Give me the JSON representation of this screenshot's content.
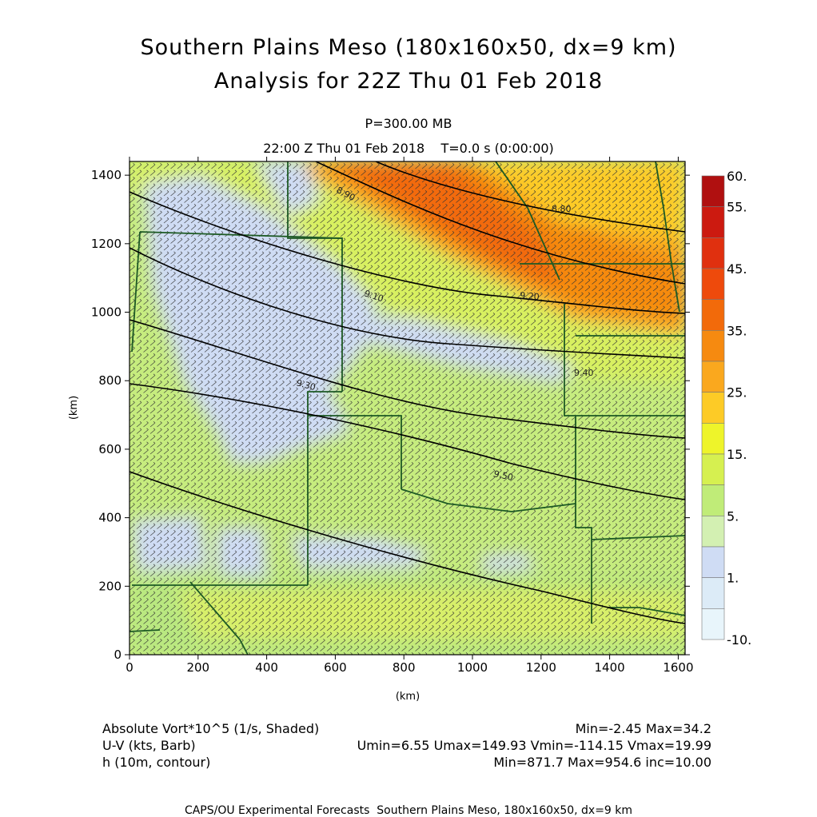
{
  "header": {
    "title_line1": "Southern Plains Meso (180x160x50, dx=9 km)",
    "title_line2": "Analysis for 22Z Thu 01 Feb 2018",
    "level": "P=300.00 MB",
    "time": "22:00 Z Thu 01 Feb 2018    T=0.0 s (0:00:00)"
  },
  "chart_data": {
    "type": "heatmap",
    "xlabel": "(km)",
    "ylabel": "(km)",
    "xlim": [
      0,
      1620
    ],
    "ylim": [
      0,
      1440
    ],
    "x_ticks": [
      0,
      200,
      400,
      600,
      800,
      1000,
      1200,
      1400,
      1600
    ],
    "y_ticks": [
      0,
      200,
      400,
      600,
      800,
      1000,
      1200,
      1400
    ],
    "colorbar": {
      "labels": [
        "60.",
        "55.",
        "45.",
        "35.",
        "25.",
        "15.",
        "5.",
        "1.",
        "-10."
      ],
      "colors": [
        "#b01010",
        "#cc1a10",
        "#e0300f",
        "#ee4a0c",
        "#f26a0a",
        "#f68a10",
        "#faa81e",
        "#fdcb26",
        "#eef42a",
        "#d6f050",
        "#c0ec78",
        "#d3f0b2",
        "#cfdcf4",
        "#dcebf7",
        "#e8f5fb"
      ]
    },
    "contour_labels": [
      "8.90",
      "8.80",
      "9.10",
      "9.20",
      "9.30",
      "9.40",
      "9.50"
    ],
    "variables": [
      {
        "name": "Absolute Vort*10^5 (1/s, Shaded)",
        "stats": "Min=-2.45 Max=34.2"
      },
      {
        "name": "U-V (kts, Barb)",
        "stats": "Umin=6.55 Umax=149.93 Vmin=-114.15 Vmax=19.99"
      },
      {
        "name": "h (10m, contour)",
        "stats": "Min=871.7 Max=954.6 inc=10.00"
      }
    ]
  },
  "footer": {
    "credit": "CAPS/OU Experimental Forecasts  Southern Plains Meso, 180x160x50, dx=9 km"
  }
}
